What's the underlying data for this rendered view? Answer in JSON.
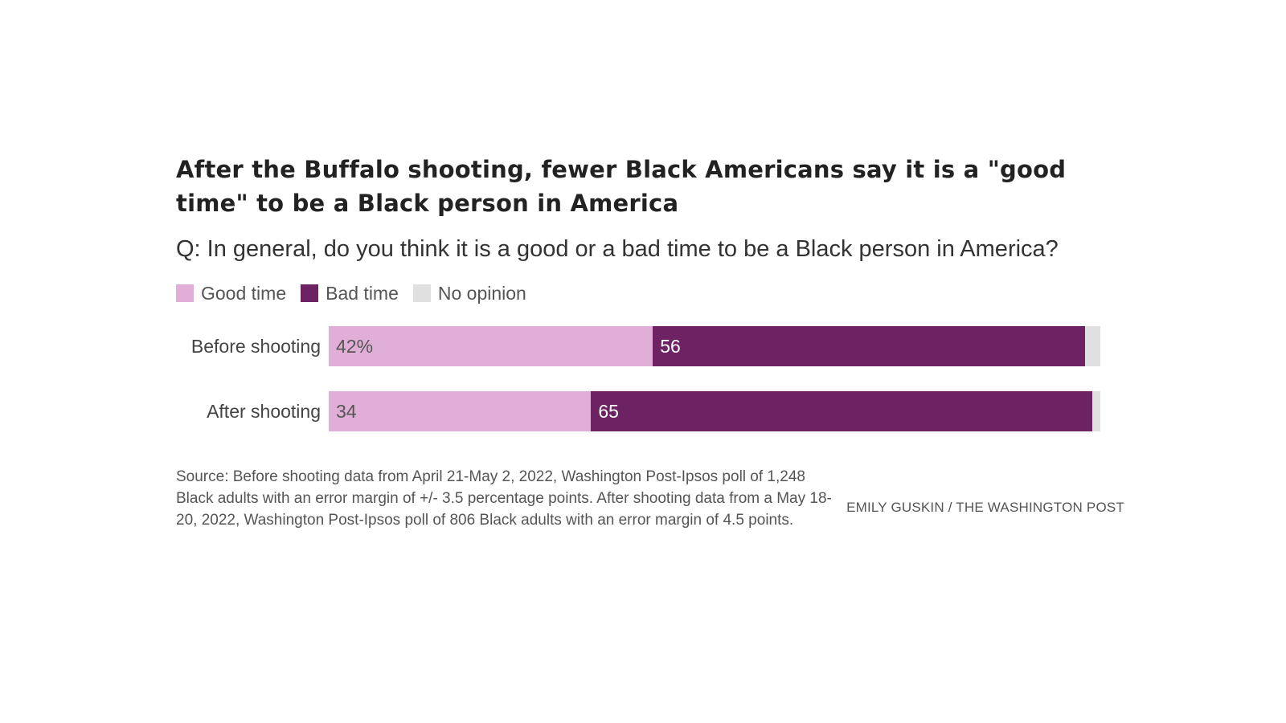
{
  "colors": {
    "good": "#e1aed8",
    "bad": "#6d2363",
    "none": "#e0e0e0",
    "good_text": "#555555",
    "bad_text": "#ffffff"
  },
  "chart_data": {
    "type": "bar",
    "orientation": "horizontal",
    "stacked": true,
    "title": "After the Buffalo shooting, fewer Black Americans say it is a \"good time\" to be a Black person in America",
    "subtitle": "Q: In general, do you think it is a good or a bad time to be a Black person in America?",
    "categories": [
      "Before shooting",
      "After shooting"
    ],
    "series": [
      {
        "name": "Good time",
        "key": "good",
        "values": [
          42,
          34
        ],
        "labels": [
          "42%",
          "34"
        ]
      },
      {
        "name": "Bad time",
        "key": "bad",
        "values": [
          56,
          65
        ],
        "labels": [
          "56",
          "65"
        ]
      },
      {
        "name": "No opinion",
        "key": "none",
        "values": [
          2,
          1
        ],
        "labels": [
          "",
          ""
        ]
      }
    ],
    "xlim": [
      0,
      100
    ],
    "legend_position": "top-left",
    "grid": false
  },
  "footer": {
    "source": "Source: Before shooting data from April 21-May 2, 2022, Washington Post-Ipsos poll of 1,248 Black adults with an error margin of +/- 3.5 percentage points. After shooting data from a May 18-20, 2022, Washington Post-Ipsos poll of 806 Black adults with an error margin of 4.5 points.",
    "credit": "EMILY GUSKIN / THE WASHINGTON POST"
  }
}
